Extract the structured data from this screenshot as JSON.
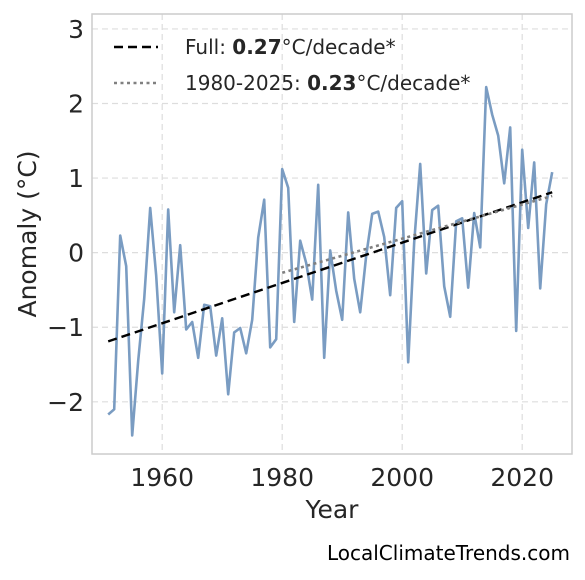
{
  "chart_data": {
    "type": "line",
    "xlabel": "Year",
    "ylabel": "Anomaly (°C)",
    "xlim": [
      1948.3,
      2028.3
    ],
    "ylim": [
      -2.7,
      3.2
    ],
    "xticks": [
      1960,
      1980,
      2000,
      2020
    ],
    "yticks": [
      -2,
      -1,
      0,
      1,
      2,
      3
    ],
    "ytick_labels": [
      "−2",
      "−1",
      "0",
      "1",
      "2",
      "3"
    ],
    "grid": true,
    "legend_position": "top-left",
    "legend": [
      {
        "prefix": "Full: ",
        "value": "0.27",
        "suffix": "°C/decade*",
        "style": "dashed",
        "color": "#000000"
      },
      {
        "prefix": "1980-2025: ",
        "value": "0.23",
        "suffix": "°C/decade*",
        "style": "dotted",
        "color": "#808080"
      }
    ],
    "series": [
      {
        "color": "#7a9cc2",
        "x": [
          1951,
          1952,
          1953,
          1954,
          1955,
          1956,
          1957,
          1958,
          1959,
          1960,
          1961,
          1962,
          1963,
          1964,
          1965,
          1966,
          1967,
          1968,
          1969,
          1970,
          1971,
          1972,
          1973,
          1974,
          1975,
          1976,
          1977,
          1978,
          1979,
          1980,
          1981,
          1982,
          1983,
          1984,
          1985,
          1986,
          1987,
          1988,
          1989,
          1990,
          1991,
          1992,
          1993,
          1994,
          1995,
          1996,
          1997,
          1998,
          1999,
          2000,
          2001,
          2002,
          2003,
          2004,
          2005,
          2006,
          2007,
          2008,
          2009,
          2010,
          2011,
          2012,
          2013,
          2014,
          2015,
          2016,
          2017,
          2018,
          2019,
          2020,
          2021,
          2022,
          2023,
          2024,
          2025
        ],
        "y": [
          -2.17,
          -2.1,
          0.23,
          -0.18,
          -2.45,
          -1.45,
          -0.62,
          0.6,
          -0.31,
          -1.62,
          0.58,
          -0.8,
          0.1,
          -1.03,
          -0.93,
          -1.41,
          -0.7,
          -0.72,
          -1.38,
          -0.88,
          -1.9,
          -1.07,
          -1.01,
          -1.35,
          -0.9,
          0.2,
          0.71,
          -1.27,
          -1.16,
          1.12,
          0.87,
          -0.93,
          0.16,
          -0.14,
          -0.63,
          0.91,
          -1.41,
          0.03,
          -0.51,
          -0.9,
          0.54,
          -0.35,
          -0.8,
          -0.04,
          0.52,
          0.55,
          0.21,
          -0.57,
          0.6,
          0.69,
          -1.47,
          0.14,
          1.19,
          -0.28,
          0.57,
          0.63,
          -0.45,
          -0.86,
          0.42,
          0.46,
          -0.47,
          0.53,
          0.07,
          2.22,
          1.85,
          1.57,
          0.93,
          1.68,
          -1.05,
          1.38,
          0.33,
          1.21,
          -0.48,
          0.65,
          1.08
        ]
      }
    ],
    "trend_lines": [
      {
        "x": [
          1951,
          2025
        ],
        "y": [
          -1.19,
          0.81
        ],
        "style": "dashed",
        "color": "#000000"
      },
      {
        "x": [
          1980,
          2025
        ],
        "y": [
          -0.27,
          0.76
        ],
        "style": "dotted",
        "color": "#808080"
      }
    ]
  },
  "source": "LocalClimateTrends.com"
}
